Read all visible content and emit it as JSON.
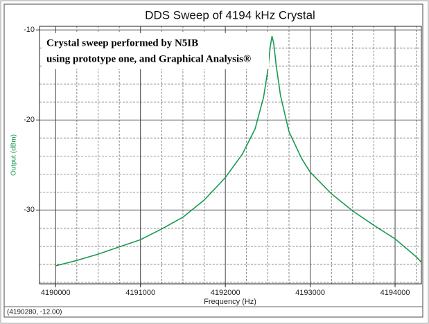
{
  "chart_data": {
    "type": "line",
    "title": "DDS Sweep of 4194 kHz Crystal",
    "annotation": [
      "Crystal sweep performed by N5IB",
      "using prototype one, and Graphical Analysis®"
    ],
    "xlabel": "Frequency (Hz)",
    "ylabel": "Output (dBm)",
    "status": "(4190280, -12.00)",
    "xlim": [
      4189810,
      4194310
    ],
    "ylim": [
      -38.2,
      -9.6
    ],
    "xticks": [
      4190000,
      4191000,
      4192000,
      4193000,
      4194000
    ],
    "yticks": [
      -10,
      -20,
      -30
    ],
    "minor_xticks": [
      4190250,
      4190500,
      4190750,
      4191250,
      4191500,
      4191750,
      4192250,
      4192500,
      4192750,
      4193250,
      4193500,
      4193750,
      4194250
    ],
    "minor_yticks": [
      -12,
      -14,
      -16,
      -18,
      -22,
      -24,
      -26,
      -28,
      -32,
      -34,
      -36,
      -38
    ],
    "grid": true,
    "x": [
      4190000,
      4190250,
      4190500,
      4190750,
      4191000,
      4191250,
      4191500,
      4191750,
      4192000,
      4192200,
      4192350,
      4192450,
      4192500,
      4192530,
      4192550,
      4192570,
      4192600,
      4192650,
      4192750,
      4192900,
      4193000,
      4193250,
      4193500,
      4193750,
      4194000,
      4194250,
      4194310
    ],
    "series": [
      {
        "name": "Output (dBm)",
        "color": "#1a9a50",
        "values": [
          -36.2,
          -35.6,
          -34.9,
          -34.1,
          -33.3,
          -32.1,
          -30.8,
          -28.9,
          -26.4,
          -23.8,
          -21.0,
          -17.5,
          -14.5,
          -11.8,
          -10.7,
          -11.5,
          -14.0,
          -17.3,
          -21.3,
          -24.3,
          -25.8,
          -28.2,
          -30.1,
          -31.7,
          -33.2,
          -35.2,
          -35.8
        ]
      }
    ]
  }
}
